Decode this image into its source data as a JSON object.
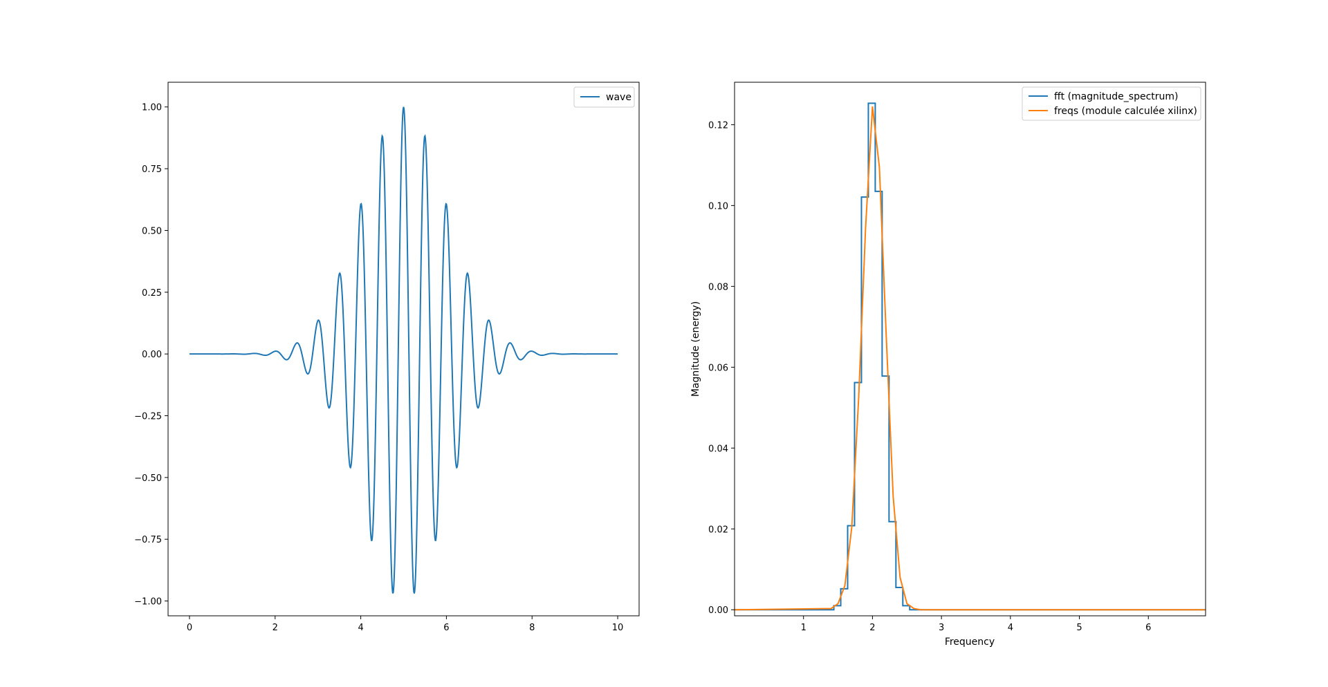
{
  "figure": {
    "background": "#ffffff",
    "series_colors": {
      "blue": "#1f77b4",
      "orange": "#ff7f0e"
    }
  },
  "chart_data": [
    {
      "type": "line",
      "title": "",
      "xlabel": "",
      "ylabel": "",
      "xlim": [
        -0.5,
        10.5
      ],
      "ylim": [
        -1.06,
        1.1
      ],
      "xticks": [
        0,
        2,
        4,
        6,
        8,
        10
      ],
      "xtick_labels": [
        "0",
        "2",
        "4",
        "6",
        "8",
        "10"
      ],
      "yticks": [
        -1.0,
        -0.75,
        -0.5,
        -0.25,
        0.0,
        0.25,
        0.5,
        0.75,
        1.0
      ],
      "ytick_labels": [
        "−1.00",
        "−0.75",
        "−0.50",
        "−0.25",
        "0.00",
        "0.25",
        "0.50",
        "0.75",
        "1.00"
      ],
      "grid": false,
      "legend_position": "top-right",
      "series": [
        {
          "name": "wave",
          "color": "#1f77b4",
          "x_range": [
            0,
            10
          ],
          "points": 1001,
          "formula": "cos(2*pi*2*(x-5)) * exp(-(x-5)^2/2)",
          "extrema": [
            {
              "x": 0.0,
              "y": 0.0
            },
            {
              "x": 1.0,
              "y": 0.0
            },
            {
              "x": 1.5,
              "y": 0.002
            },
            {
              "x": 2.0,
              "y": 0.011
            },
            {
              "x": 2.25,
              "y": -0.02
            },
            {
              "x": 2.5,
              "y": 0.044
            },
            {
              "x": 2.75,
              "y": -0.08
            },
            {
              "x": 3.0,
              "y": 0.135
            },
            {
              "x": 3.25,
              "y": -0.22
            },
            {
              "x": 3.5,
              "y": 0.325
            },
            {
              "x": 3.75,
              "y": -0.46
            },
            {
              "x": 4.0,
              "y": 0.607
            },
            {
              "x": 4.25,
              "y": -0.755
            },
            {
              "x": 4.5,
              "y": 0.882
            },
            {
              "x": 4.75,
              "y": -0.969
            },
            {
              "x": 5.0,
              "y": 1.0
            },
            {
              "x": 5.25,
              "y": -0.969
            },
            {
              "x": 5.5,
              "y": 0.882
            },
            {
              "x": 5.75,
              "y": -0.755
            },
            {
              "x": 6.0,
              "y": 0.607
            },
            {
              "x": 6.25,
              "y": -0.46
            },
            {
              "x": 6.5,
              "y": 0.325
            },
            {
              "x": 6.75,
              "y": -0.22
            },
            {
              "x": 7.0,
              "y": 0.135
            },
            {
              "x": 7.25,
              "y": -0.08
            },
            {
              "x": 7.5,
              "y": 0.044
            },
            {
              "x": 7.75,
              "y": -0.02
            },
            {
              "x": 8.0,
              "y": 0.011
            },
            {
              "x": 8.5,
              "y": 0.002
            },
            {
              "x": 9.0,
              "y": 0.0
            },
            {
              "x": 10.0,
              "y": 0.0
            }
          ]
        }
      ]
    },
    {
      "type": "line",
      "title": "",
      "xlabel": "Frequency",
      "ylabel": "Magnitude (energy)",
      "xlim": [
        0.0,
        6.83
      ],
      "ylim": [
        -0.0015,
        0.1305
      ],
      "xticks": [
        1,
        2,
        3,
        4,
        5,
        6
      ],
      "xtick_labels": [
        "1",
        "2",
        "3",
        "4",
        "5",
        "6"
      ],
      "yticks": [
        0.0,
        0.02,
        0.04,
        0.06,
        0.08,
        0.1,
        0.12
      ],
      "ytick_labels": [
        "0.00",
        "0.02",
        "0.04",
        "0.06",
        "0.08",
        "0.10",
        "0.12"
      ],
      "grid": false,
      "legend_position": "top-right",
      "series": [
        {
          "name": "fft (magnitude_spectrum)",
          "color": "#1f77b4",
          "drawstyle": "steps",
          "bins": [
            {
              "x0": 0.0,
              "x1": 1.44,
              "y": 0.0
            },
            {
              "x0": 1.44,
              "x1": 1.54,
              "y": 0.001
            },
            {
              "x0": 1.54,
              "x1": 1.64,
              "y": 0.0052
            },
            {
              "x0": 1.64,
              "x1": 1.74,
              "y": 0.0208
            },
            {
              "x0": 1.74,
              "x1": 1.84,
              "y": 0.0562
            },
            {
              "x0": 1.84,
              "x1": 1.94,
              "y": 0.1021
            },
            {
              "x0": 1.94,
              "x1": 2.04,
              "y": 0.1253
            },
            {
              "x0": 2.04,
              "x1": 2.14,
              "y": 0.1035
            },
            {
              "x0": 2.14,
              "x1": 2.24,
              "y": 0.0578
            },
            {
              "x0": 2.24,
              "x1": 2.34,
              "y": 0.0218
            },
            {
              "x0": 2.34,
              "x1": 2.44,
              "y": 0.0055
            },
            {
              "x0": 2.44,
              "x1": 2.54,
              "y": 0.001
            },
            {
              "x0": 2.54,
              "x1": 6.83,
              "y": 0.0
            }
          ]
        },
        {
          "name": "freqs (module calculée xilinx)",
          "color": "#ff7f0e",
          "points": [
            [
              0.0,
              0.0
            ],
            [
              1.4,
              0.0003
            ],
            [
              1.5,
              0.0015
            ],
            [
              1.6,
              0.006
            ],
            [
              1.7,
              0.0205
            ],
            [
              1.8,
              0.0525
            ],
            [
              1.9,
              0.0945
            ],
            [
              2.0,
              0.1245
            ],
            [
              2.1,
              0.1095
            ],
            [
              2.2,
              0.0675
            ],
            [
              2.3,
              0.028
            ],
            [
              2.4,
              0.008
            ],
            [
              2.5,
              0.0015
            ],
            [
              2.6,
              0.0003
            ],
            [
              2.7,
              0.0
            ],
            [
              6.83,
              0.0
            ]
          ]
        }
      ]
    }
  ]
}
